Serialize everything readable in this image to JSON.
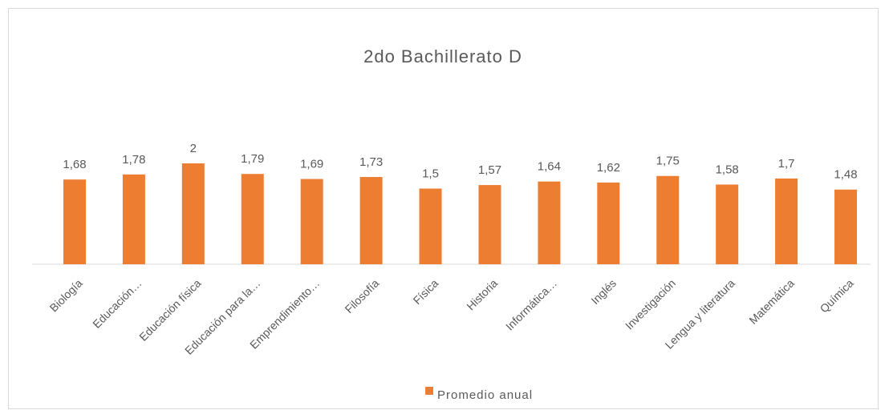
{
  "chart_data": {
    "type": "bar",
    "title": "2do Bachillerato D",
    "categories": [
      "Biología",
      "Educación…",
      "Educación física",
      "Educación para la…",
      "Emprendimiento…",
      "Filosofía",
      "Física",
      "Historia",
      "Informática…",
      "Inglés",
      "Investigación",
      "Lengua y literatura",
      "Matemática",
      "Química"
    ],
    "series": [
      {
        "name": "Promedio anual",
        "color": "#ED7D31",
        "values": [
          1.68,
          1.78,
          2,
          1.79,
          1.69,
          1.73,
          1.5,
          1.57,
          1.64,
          1.62,
          1.75,
          1.58,
          1.7,
          1.48
        ],
        "value_labels": [
          "1,68",
          "1,78",
          "2",
          "1,79",
          "1,69",
          "1,73",
          "1,5",
          "1,57",
          "1,64",
          "1,62",
          "1,75",
          "1,58",
          "1,7",
          "1,48"
        ]
      }
    ],
    "ylim": [
      0,
      3
    ],
    "legend": "bottom"
  }
}
